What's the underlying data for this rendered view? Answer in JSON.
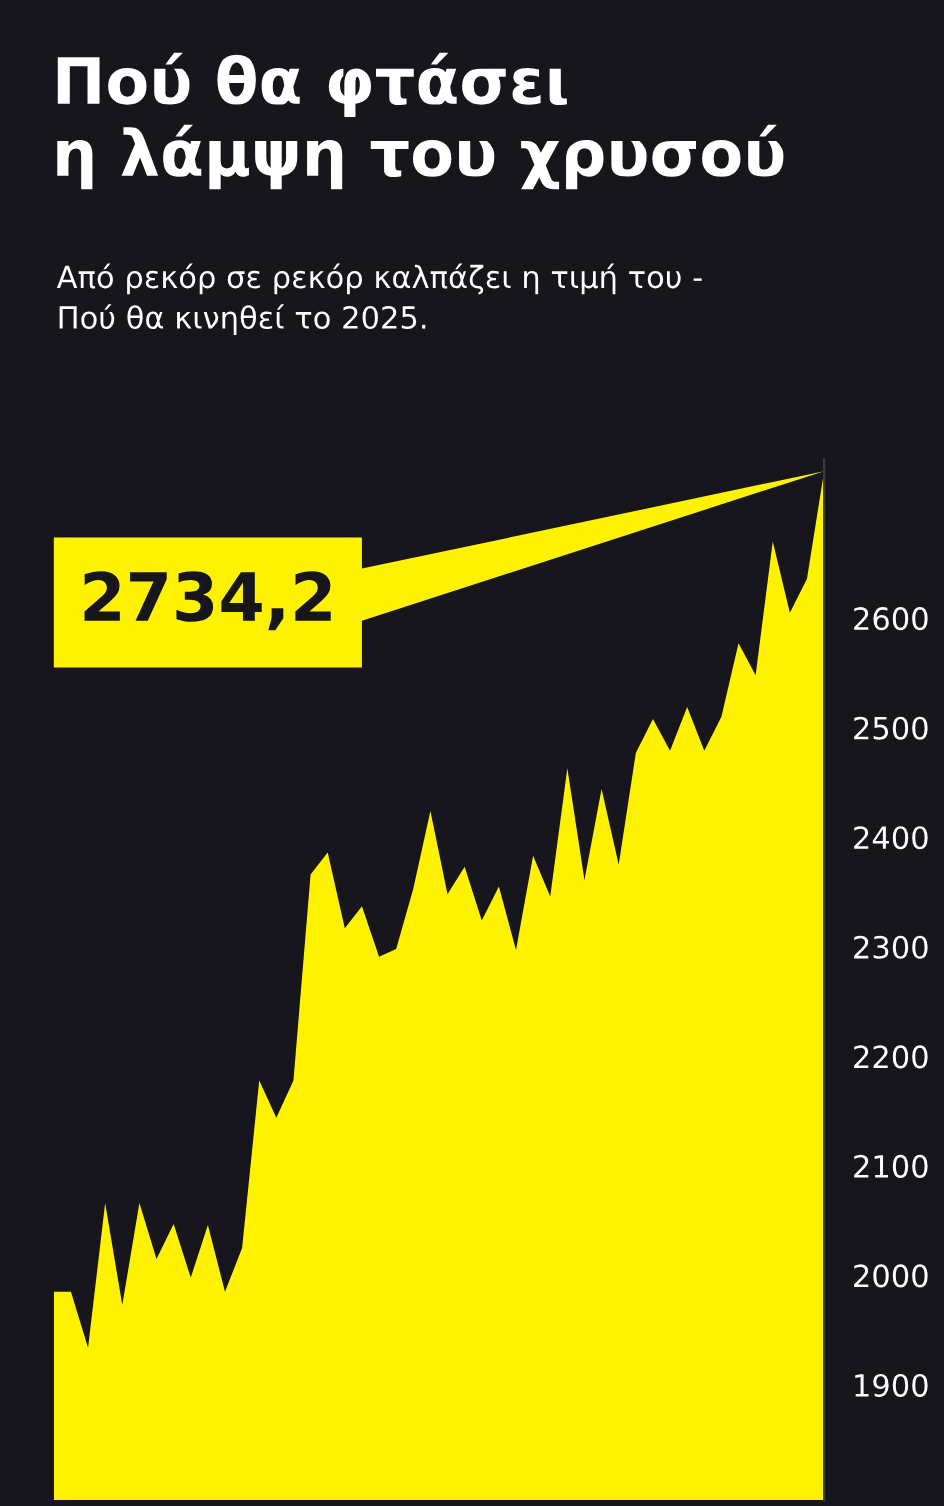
{
  "chart_data": {
    "type": "area",
    "title": "Πού θα φτάσει\nη λάμψη του χρυσού",
    "subtitle": "Από ρεκόρ σε ρεκόρ καλπάζει η τιμή του -\nΠού θα κινηθεί το 2025.",
    "categories": [
      null,
      null,
      null,
      null,
      null,
      null,
      null,
      null,
      null,
      null,
      null,
      null,
      null,
      null,
      null,
      null,
      null,
      null,
      null,
      null,
      null,
      null,
      null,
      null,
      null,
      null,
      null,
      null,
      null,
      null,
      null,
      null,
      null,
      null,
      null,
      null,
      null,
      null,
      null,
      null,
      null,
      null,
      null,
      null,
      null,
      null
    ],
    "series": [
      {
        "color": "#fff200",
        "values": [
          1985,
          1985,
          1934,
          2066,
          1973,
          2066,
          2015,
          2047,
          1998,
          2046,
          1985,
          2025,
          2178,
          2144,
          2178,
          2366,
          2386,
          2317,
          2337,
          2291,
          2298,
          2353,
          2424,
          2348,
          2373,
          2324,
          2355,
          2297,
          2383,
          2346,
          2463,
          2361,
          2444,
          2375,
          2477,
          2508,
          2479,
          2519,
          2479,
          2510,
          2577,
          2548,
          2670,
          2605,
          2636,
          2734.2
        ]
      }
    ],
    "annotations": [
      "2734,2"
    ],
    "ylim": [
      1795,
      2745
    ],
    "yticks": [
      1900,
      2000,
      2100,
      2200,
      2300,
      2400,
      2500,
      2600
    ],
    "grid": false,
    "legend": false
  }
}
